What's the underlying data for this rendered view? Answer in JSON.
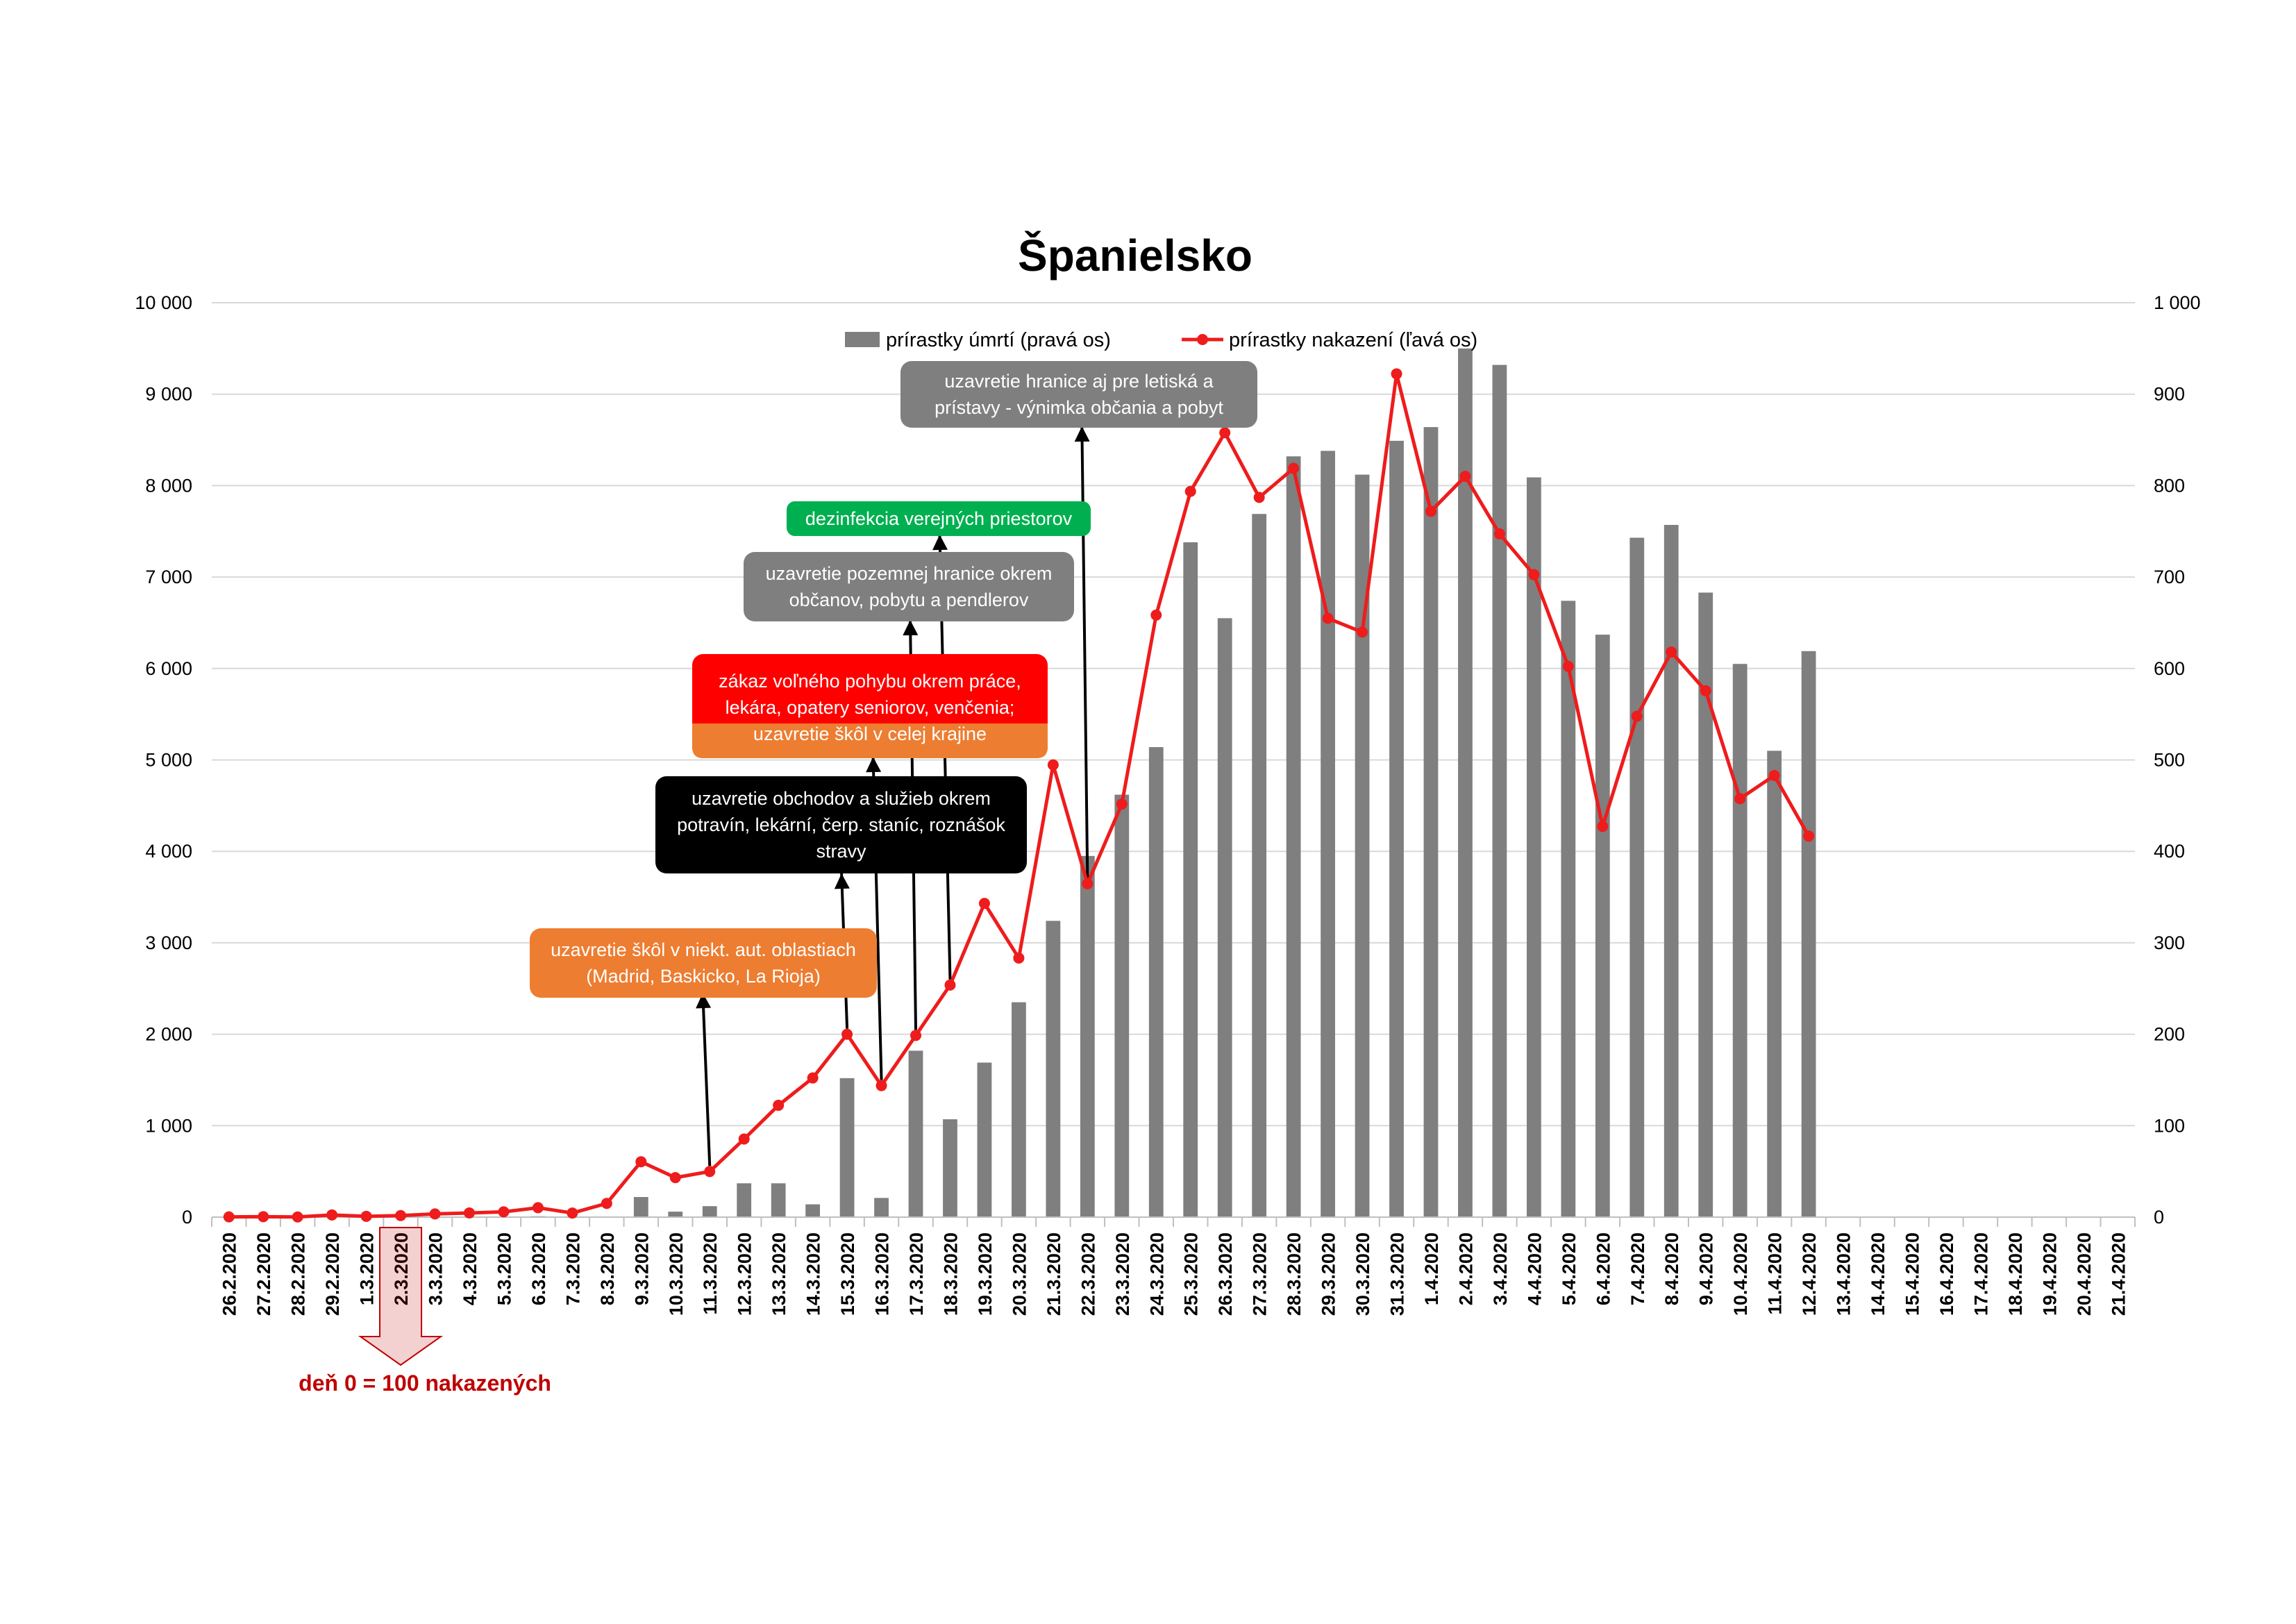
{
  "chart_data": {
    "type": "bar+line",
    "title": "Španielsko",
    "categories": [
      "26.2.2020",
      "27.2.2020",
      "28.2.2020",
      "29.2.2020",
      "1.3.2020",
      "2.3.2020",
      "3.3.2020",
      "4.3.2020",
      "5.3.2020",
      "6.3.2020",
      "7.3.2020",
      "8.3.2020",
      "9.3.2020",
      "10.3.2020",
      "11.3.2020",
      "12.3.2020",
      "13.3.2020",
      "14.3.2020",
      "15.3.2020",
      "16.3.2020",
      "17.3.2020",
      "18.3.2020",
      "19.3.2020",
      "20.3.2020",
      "21.3.2020",
      "22.3.2020",
      "23.3.2020",
      "24.3.2020",
      "25.3.2020",
      "26.3.2020",
      "27.3.2020",
      "28.3.2020",
      "29.3.2020",
      "30.3.2020",
      "31.3.2020",
      "1.4.2020",
      "2.4.2020",
      "3.4.2020",
      "4.4.2020",
      "5.4.2020",
      "6.4.2020",
      "7.4.2020",
      "8.4.2020",
      "9.4.2020",
      "10.4.2020",
      "11.4.2020",
      "12.4.2020",
      "13.4.2020",
      "14.4.2020",
      "15.4.2020",
      "16.4.2020",
      "17.4.2020",
      "18.4.2020",
      "19.4.2020",
      "20.4.2020",
      "21.4.2020"
    ],
    "series": [
      {
        "name": "prírastky úmrtí (pravá os)",
        "type": "bar",
        "axis": "right",
        "color": "#7f7f7f",
        "values": [
          0,
          0,
          0,
          0,
          0,
          0,
          0,
          0,
          0,
          1,
          0,
          0,
          22,
          6,
          12,
          37,
          37,
          14,
          152,
          21,
          182,
          107,
          169,
          235,
          324,
          395,
          462,
          514,
          738,
          655,
          769,
          832,
          838,
          812,
          849,
          864,
          950,
          932,
          809,
          674,
          637,
          743,
          757,
          683,
          605,
          510,
          619,
          null,
          null,
          null,
          null,
          null,
          null,
          null,
          null,
          null
        ]
      },
      {
        "name": "prírastky nakazení (ľavá os)",
        "type": "line",
        "axis": "left",
        "color": "#ee1c1c",
        "values": [
          3,
          5,
          2,
          24,
          9,
          17,
          35,
          46,
          58,
          103,
          45,
          150,
          606,
          432,
          499,
          854,
          1223,
          1522,
          2000,
          1438,
          1987,
          2538,
          3431,
          2833,
          4946,
          3646,
          4517,
          6584,
          7937,
          8578,
          7871,
          8189,
          6549,
          6398,
          9222,
          7719,
          8102,
          7472,
          7026,
          6023,
          4273,
          5478,
          6180,
          5756,
          4576,
          4830,
          4167,
          null,
          null,
          null,
          null,
          null,
          null,
          null,
          null,
          null
        ]
      }
    ],
    "y_left": {
      "min": 0,
      "max": 10000,
      "ticks": [
        "0",
        "1 000",
        "2 000",
        "3 000",
        "4 000",
        "5 000",
        "6 000",
        "7 000",
        "8 000",
        "9 000",
        "10 000"
      ]
    },
    "y_right": {
      "min": 0,
      "max": 1000,
      "ticks": [
        "0",
        "100",
        "200",
        "300",
        "400",
        "500",
        "600",
        "700",
        "800",
        "900",
        "1 000"
      ]
    },
    "grid": true,
    "legend_position": "top-center",
    "annotations": [
      {
        "text": "uzavretie škôl v niekt. aut. oblastiach (Madrid, Baskicko, La Rioja)",
        "category": "11.3.2020",
        "color": "#ed7d31",
        "text_color": "#ffffff"
      },
      {
        "text": "uzavretie obchodov a služieb okrem potravín, lekární, čerp. staníc, roznášok stravy",
        "category": "15.3.2020",
        "color": "#000000",
        "text_color": "#ffffff"
      },
      {
        "text": "zákaz voľného pohybu okrem práce, lekára, opatery seniorov, venčenia;",
        "category": "16.3.2020",
        "color": "#ff0000",
        "text_color": "#ffffff"
      },
      {
        "text": "uzavretie škôl v celej krajine",
        "category": "16.3.2020",
        "color": "#ed7d31",
        "text_color": "#ffffff"
      },
      {
        "text": "uzavretie pozemnej hranice okrem občanov, pobytu a pendlerov",
        "category": "17.3.2020",
        "color": "#7f7f7f",
        "text_color": "#ffffff"
      },
      {
        "text": "dezinfekcia verejných priestorov",
        "category": "18.3.2020",
        "color": "#00b050",
        "text_color": "#ffffff"
      },
      {
        "text": "uzavretie hranice aj pre letiská a prístavy - výnimka občania a pobyt",
        "category": "22.3.2020",
        "color": "#7f7f7f",
        "text_color": "#ffffff"
      }
    ],
    "day0_marker": {
      "category": "2.3.2020",
      "label": "deň 0 = 100 nakazených",
      "color": "#c00000"
    }
  }
}
